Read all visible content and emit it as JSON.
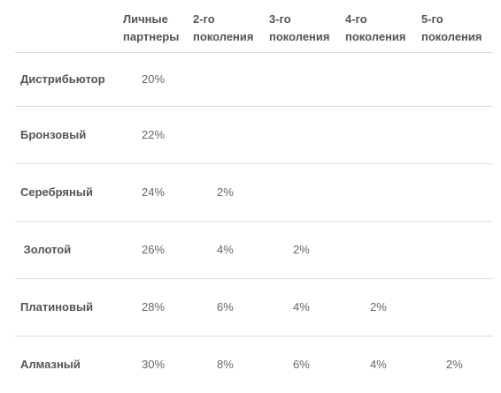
{
  "headers": [
    {
      "line1": "Личные",
      "line2": "партнеры"
    },
    {
      "line1": "2-го",
      "line2": "поколения"
    },
    {
      "line1": "3-го",
      "line2": "поколения"
    },
    {
      "line1": "4-го",
      "line2": "поколения"
    },
    {
      "line1": "5-го",
      "line2": "поколения"
    }
  ],
  "rows": [
    {
      "label": "Дистрибьютор",
      "values": [
        "20%",
        "",
        "",
        "",
        ""
      ]
    },
    {
      "label": "Бронзовый",
      "values": [
        "22%",
        "",
        "",
        "",
        ""
      ]
    },
    {
      "label": "Серебряный",
      "values": [
        "24%",
        "2%",
        "",
        "",
        ""
      ]
    },
    {
      "label": " Золотой",
      "values": [
        "26%",
        "4%",
        "2%",
        "",
        ""
      ]
    },
    {
      "label": "Платиновый",
      "values": [
        "28%",
        "6%",
        "4%",
        "2%",
        ""
      ]
    },
    {
      "label": "Алмазный",
      "values": [
        "30%",
        "8%",
        "6%",
        "4%",
        "2%"
      ]
    }
  ]
}
